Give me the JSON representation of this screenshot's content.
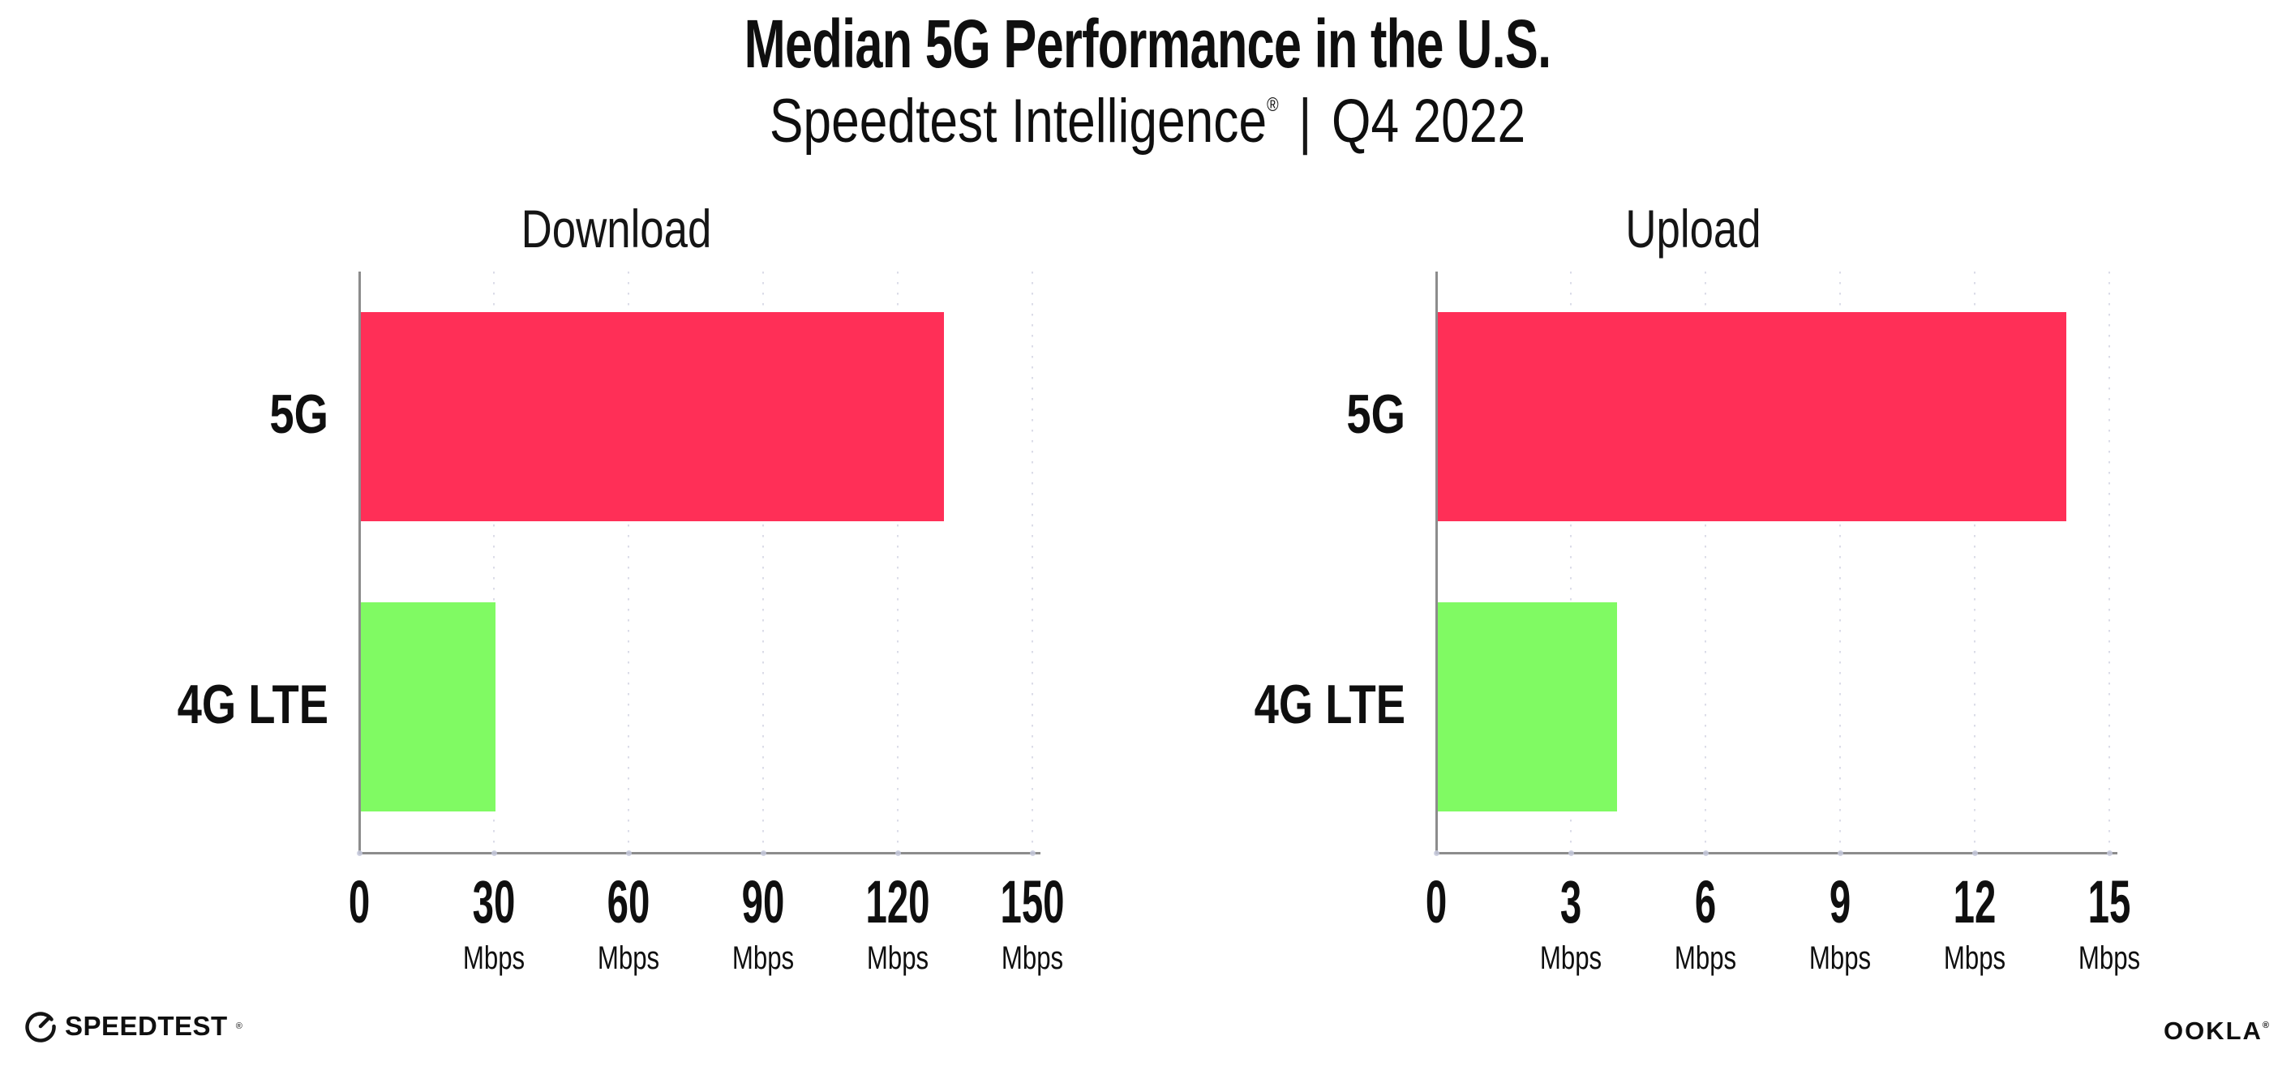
{
  "header": {
    "title": "Median 5G Performance in the U.S.",
    "subtitle_product": "Speedtest Intelligence",
    "subtitle_reg_mark": "®",
    "subtitle_separator": "|",
    "subtitle_period": "Q4 2022"
  },
  "footer": {
    "speedtest_logo_text": "SPEEDTEST",
    "speedtest_trademark": "®",
    "ookla_logo_text": "OOKLA",
    "ookla_trademark": "®"
  },
  "colors": {
    "bar_5g": "#FF2F57",
    "bar_4g_lte": "#80FA63",
    "axis": "#8C8C8C",
    "gridline": "#DBDCE8",
    "tick_dot": "#C5C9DC",
    "text": "#0F0F0F"
  },
  "chart_data": [
    {
      "type": "bar",
      "orientation": "horizontal",
      "title": "Download",
      "categories": [
        "5G",
        "4G LTE"
      ],
      "values": [
        130,
        30
      ],
      "unit": "Mbps",
      "xlim": [
        0,
        150
      ],
      "xticks": [
        0,
        30,
        60,
        90,
        120,
        150
      ],
      "tick_unit_label": "Mbps",
      "grid": "vertical-dotted",
      "legend": "none",
      "bar_colors": [
        "#FF2F57",
        "#80FA63"
      ]
    },
    {
      "type": "bar",
      "orientation": "horizontal",
      "title": "Upload",
      "categories": [
        "5G",
        "4G LTE"
      ],
      "values": [
        14,
        4
      ],
      "unit": "Mbps",
      "xlim": [
        0,
        15
      ],
      "xticks": [
        0,
        3,
        6,
        9,
        12,
        15
      ],
      "tick_unit_label": "Mbps",
      "grid": "vertical-dotted",
      "legend": "none",
      "bar_colors": [
        "#FF2F57",
        "#80FA63"
      ]
    }
  ]
}
